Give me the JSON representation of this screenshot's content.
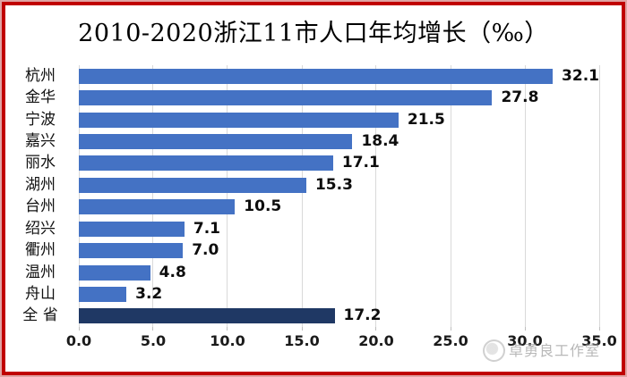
{
  "page": {
    "background": "#ffffff",
    "frame_border_color": "#c00000",
    "frame_outer_border_color": "#dfa3a3"
  },
  "title": "2010-2020浙江11市人口年均增长（‰）",
  "chart_data": {
    "type": "bar",
    "orientation": "horizontal",
    "title": "2010-2020浙江11市人口年均增长（‰）",
    "categories": [
      "杭州",
      "金华",
      "宁波",
      "嘉兴",
      "丽水",
      "湖州",
      "台州",
      "绍兴",
      "衢州",
      "温州",
      "舟山",
      "全 省"
    ],
    "values": [
      32.1,
      27.8,
      21.5,
      18.4,
      17.1,
      15.3,
      10.5,
      7.1,
      7.0,
      4.8,
      3.2,
      17.2
    ],
    "value_labels": [
      "32.1",
      "27.8",
      "21.5",
      "18.4",
      "17.1",
      "15.3",
      "10.5",
      "7.1",
      "7.0",
      "4.8",
      "3.2",
      "17.2"
    ],
    "xlim": [
      0,
      35
    ],
    "x_tick_step": 5,
    "x_tick_labels": [
      "0.0",
      "5.0",
      "10.0",
      "15.0",
      "20.0",
      "25.0",
      "30.0",
      "35.0"
    ],
    "bar_color": "#4472c4",
    "highlight_index": 11,
    "highlight_color": "#1f3864",
    "gridline_color": "#d9d9d9",
    "grid": true,
    "legend": false,
    "data_labels": "outside-end"
  },
  "watermark": {
    "text": "卓勇良工作室",
    "icon": "studio-logo",
    "color": "#8c8c8c"
  }
}
